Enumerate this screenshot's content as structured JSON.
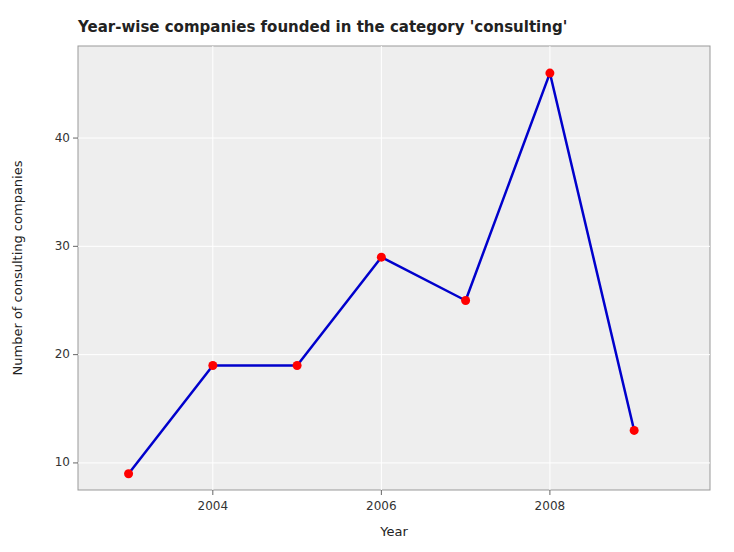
{
  "chart_data": {
    "type": "line",
    "title": "Year-wise companies founded in the category 'consulting'",
    "x_label": "Year",
    "y_label": "Number of consulting companies",
    "x": [
      2003,
      2004,
      2005,
      2006,
      2007,
      2008,
      2009
    ],
    "values": [
      9,
      19,
      19,
      29,
      25,
      46,
      13
    ],
    "color": "#0000cc",
    "colors": [
      "#ff0000",
      "#ff0000",
      "#ff0000",
      "#ff0000",
      "#ff0000",
      "#ff0000",
      "#ff0000"
    ],
    "marker": "circle",
    "xlim": [
      2002.4,
      2009.9
    ],
    "xticks": [
      2004,
      2006,
      2008
    ],
    "ylim": [
      7.5,
      48.5
    ],
    "yticks": [
      10,
      20,
      30,
      40
    ],
    "grid": true
  }
}
